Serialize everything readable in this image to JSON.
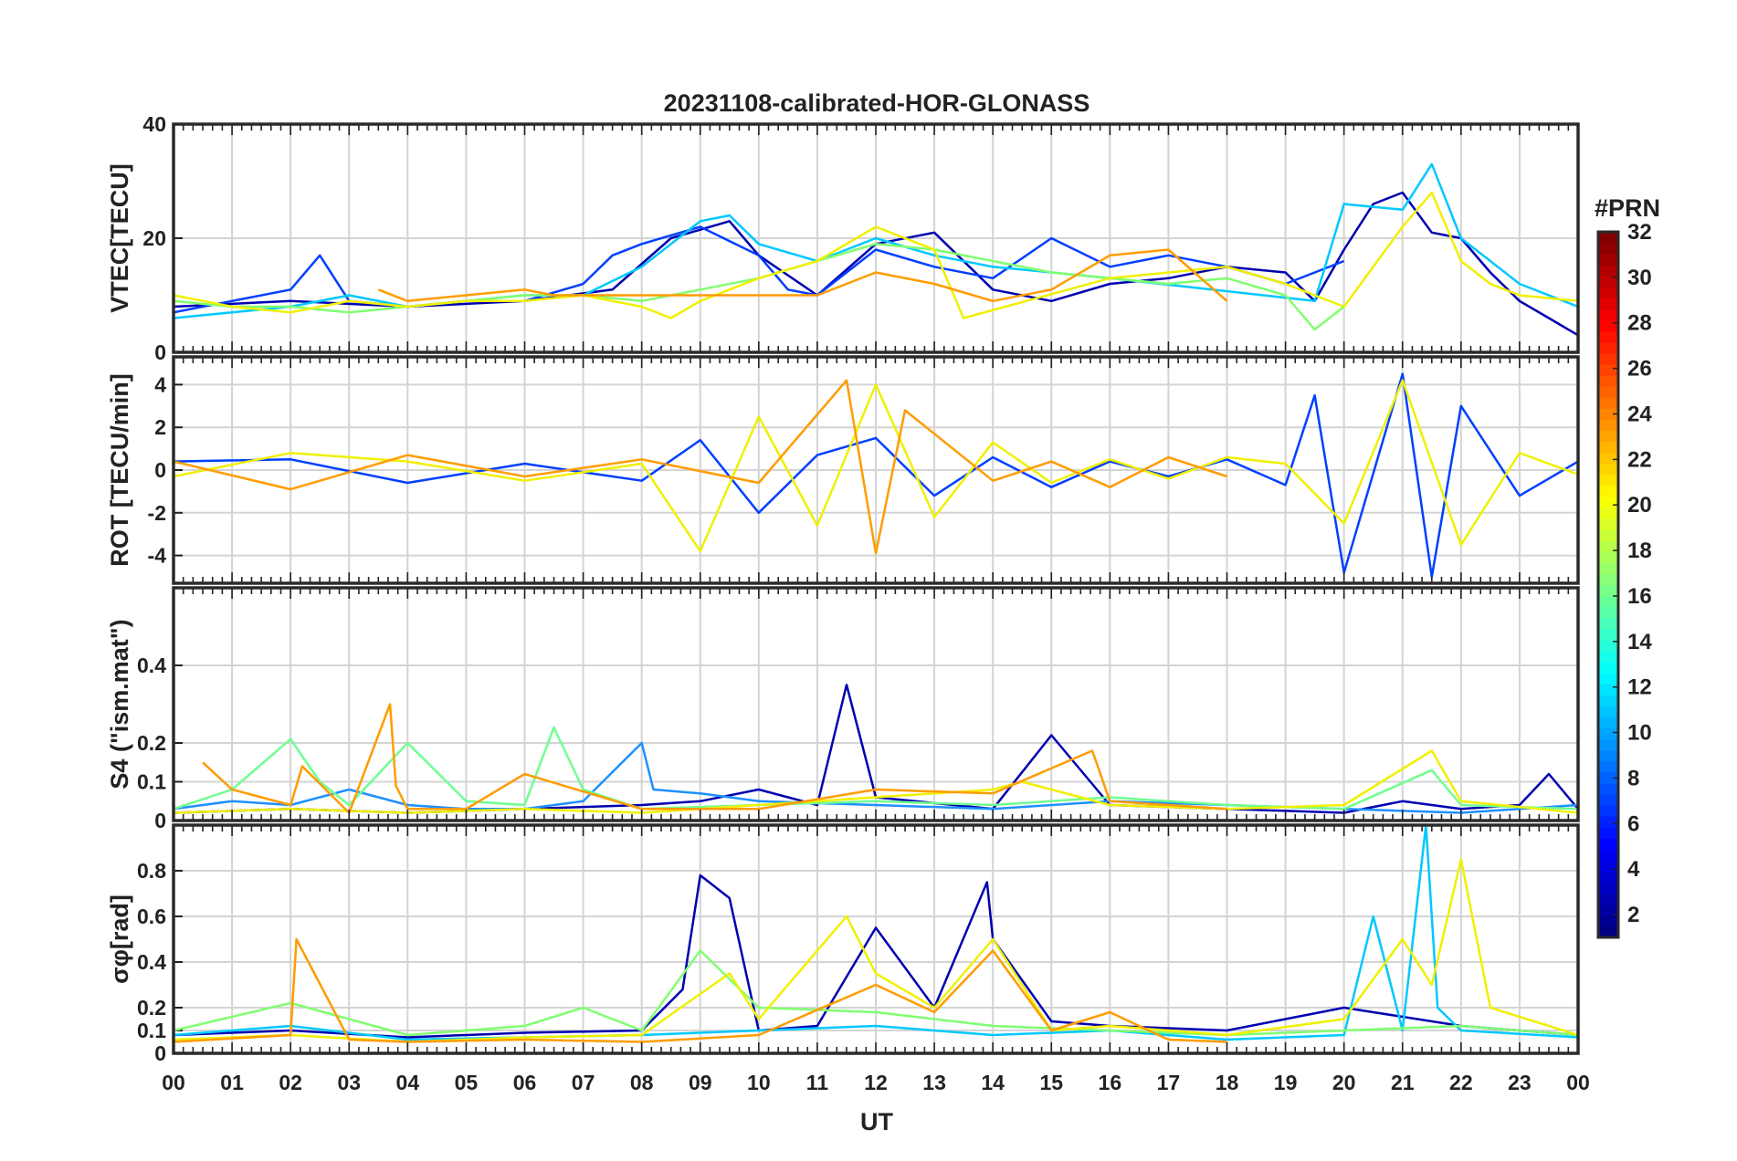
{
  "title": "20231108-calibrated-HOR-GLONASS",
  "x_axis": {
    "label": "UT",
    "range": [
      0,
      24
    ],
    "tick_labels": [
      "00",
      "01",
      "02",
      "03",
      "04",
      "05",
      "06",
      "07",
      "08",
      "09",
      "10",
      "11",
      "12",
      "13",
      "14",
      "15",
      "16",
      "17",
      "18",
      "19",
      "20",
      "21",
      "22",
      "23",
      "00"
    ]
  },
  "colorbar": {
    "title": "#PRN",
    "range": [
      1,
      32
    ],
    "tick_labels": [
      "2",
      "4",
      "6",
      "8",
      "10",
      "12",
      "14",
      "16",
      "18",
      "20",
      "22",
      "24",
      "26",
      "28",
      "30",
      "32"
    ],
    "colormap": "jet"
  },
  "chart_data": [
    {
      "type": "line",
      "ylabel": "VTEC[TECU]",
      "ylim": [
        0,
        40
      ],
      "yticks": [
        "0",
        "20",
        "40"
      ],
      "grid": true,
      "series": [
        {
          "prn": 2,
          "color": "#0000b0",
          "x": [
            0,
            2,
            4,
            6,
            7.5,
            8.5,
            9.5,
            10,
            11,
            12,
            13,
            14,
            15,
            16,
            17,
            18,
            19,
            19.5,
            20,
            20.5,
            21,
            21.5,
            22,
            22.5,
            23,
            23.5,
            24
          ],
          "y": [
            8,
            9,
            8,
            9,
            11,
            20,
            23,
            17,
            10,
            19,
            21,
            11,
            9,
            12,
            13,
            15,
            14,
            9,
            18,
            26,
            28,
            21,
            20,
            14,
            9,
            6,
            3
          ]
        },
        {
          "prn": 5,
          "color": "#0040ff",
          "x": [
            0,
            1,
            2,
            2.5,
            3,
            4,
            5,
            6,
            7,
            7.5,
            8,
            9,
            10,
            10.5,
            11,
            12,
            13,
            14,
            15,
            16,
            17,
            18,
            19,
            20
          ],
          "y": [
            7,
            9,
            11,
            17,
            9,
            8,
            9,
            9,
            12,
            17,
            19,
            22,
            17,
            11,
            10,
            18,
            15,
            13,
            20,
            15,
            17,
            15,
            12,
            16
          ]
        },
        {
          "prn": 12,
          "color": "#00c8ff",
          "x": [
            0,
            1,
            2,
            3,
            4,
            5,
            6,
            7,
            8,
            9,
            9.5,
            10,
            11,
            12,
            13,
            14,
            15,
            16,
            19.5,
            20,
            21,
            21.5,
            22,
            23,
            24
          ],
          "y": [
            6,
            7,
            8,
            10,
            8,
            9,
            10,
            10,
            15,
            23,
            24,
            19,
            16,
            20,
            17,
            15,
            14,
            13,
            9,
            26,
            25,
            33,
            20,
            12,
            8
          ]
        },
        {
          "prn": 16,
          "color": "#80ff70",
          "x": [
            0,
            1,
            2,
            3,
            4,
            5,
            6,
            7,
            8,
            9,
            10,
            11,
            12,
            13,
            14,
            15,
            16,
            17,
            18,
            19,
            19.5,
            20
          ],
          "y": [
            9,
            8,
            8,
            7,
            8,
            9,
            10,
            10,
            9,
            11,
            13,
            16,
            19,
            18,
            16,
            14,
            13,
            12,
            13,
            10,
            4,
            8
          ]
        },
        {
          "prn": 20,
          "color": "#f0f000",
          "x": [
            0,
            1,
            2,
            3,
            4,
            5,
            6,
            7,
            8,
            8.5,
            9,
            10,
            11,
            12,
            13,
            13.5,
            16,
            17,
            18,
            19,
            20,
            21,
            21.5,
            22,
            22.5,
            23,
            24
          ],
          "y": [
            10,
            8,
            7,
            9,
            8,
            9,
            9,
            10,
            8,
            6,
            9,
            13,
            16,
            22,
            18,
            6,
            13,
            14,
            15,
            12,
            8,
            22,
            28,
            16,
            12,
            10,
            9
          ]
        },
        {
          "prn": 22,
          "color": "#ff9c00",
          "x": [
            3.5,
            4,
            5,
            6,
            6.5,
            11,
            12,
            13,
            14,
            15,
            16,
            17,
            18
          ],
          "y": [
            11,
            9,
            10,
            11,
            10,
            10,
            14,
            12,
            9,
            11,
            17,
            18,
            9
          ]
        }
      ]
    },
    {
      "type": "line",
      "ylabel": "ROT [TECU/min]",
      "ylim": [
        -5.3,
        5.3
      ],
      "yticks": [
        "-4",
        "-2",
        "0",
        "2",
        "4"
      ],
      "grid": true,
      "series": [
        {
          "prn": 5,
          "color": "#0040ff",
          "x": [
            0,
            2,
            4,
            6,
            8,
            9,
            10,
            11,
            12,
            13,
            14,
            15,
            16,
            17,
            18,
            19,
            19.5,
            20,
            21,
            21.5,
            22,
            23,
            24
          ],
          "y": [
            0.4,
            0.5,
            -0.6,
            0.3,
            -0.5,
            1.4,
            -2,
            0.7,
            1.5,
            -1.2,
            0.6,
            -0.8,
            0.4,
            -0.3,
            0.5,
            -0.7,
            3.5,
            -4.8,
            4.5,
            -5,
            3,
            -1.2,
            0.4
          ]
        },
        {
          "prn": 20,
          "color": "#f0f000",
          "x": [
            0,
            2,
            4,
            6,
            8,
            9,
            10,
            11,
            12,
            13,
            14,
            15,
            16,
            17,
            18,
            19,
            20,
            21,
            22,
            23,
            24
          ],
          "y": [
            -0.3,
            0.8,
            0.4,
            -0.5,
            0.3,
            -3.8,
            2.5,
            -2.6,
            4,
            -2.2,
            1.3,
            -0.6,
            0.5,
            -0.4,
            0.6,
            0.3,
            -2.5,
            4.2,
            -3.5,
            0.8,
            -0.2
          ]
        },
        {
          "prn": 22,
          "color": "#ff9c00",
          "x": [
            0,
            2,
            4,
            6,
            8,
            10,
            11.5,
            12,
            12.5,
            14,
            15,
            16,
            17,
            18
          ],
          "y": [
            0.4,
            -0.9,
            0.7,
            -0.3,
            0.5,
            -0.6,
            4.2,
            -3.9,
            2.8,
            -0.5,
            0.4,
            -0.8,
            0.6,
            -0.3
          ]
        }
      ]
    },
    {
      "type": "line",
      "ylabel": "S4 (\"ism.mat\")",
      "ylim": [
        0,
        0.6
      ],
      "yticks": [
        "0",
        "0.1",
        "0.2",
        "0.4"
      ],
      "grid": true,
      "series": [
        {
          "prn": 2,
          "color": "#0000b0",
          "x": [
            0,
            2,
            4,
            6,
            8,
            9,
            10,
            11,
            11.5,
            12,
            14,
            15,
            16,
            18,
            20,
            21,
            22,
            23,
            23.5,
            24
          ],
          "y": [
            0.02,
            0.03,
            0.02,
            0.03,
            0.04,
            0.05,
            0.08,
            0.04,
            0.35,
            0.06,
            0.03,
            0.22,
            0.04,
            0.03,
            0.02,
            0.05,
            0.03,
            0.04,
            0.12,
            0.03
          ]
        },
        {
          "prn": 10,
          "color": "#1e90ff",
          "x": [
            0,
            1,
            2,
            3,
            4,
            5,
            6,
            7,
            8,
            8.2,
            9,
            10,
            12,
            14,
            16,
            18,
            20,
            22,
            24
          ],
          "y": [
            0.03,
            0.05,
            0.04,
            0.08,
            0.04,
            0.03,
            0.03,
            0.05,
            0.2,
            0.08,
            0.07,
            0.05,
            0.04,
            0.03,
            0.05,
            0.04,
            0.03,
            0.02,
            0.04
          ]
        },
        {
          "prn": 16,
          "color": "#70ff90",
          "x": [
            0,
            1,
            2,
            2.5,
            3,
            4,
            5,
            6,
            6.5,
            7,
            8,
            10,
            12,
            14,
            16,
            18,
            20,
            21.5,
            22,
            24
          ],
          "y": [
            0.03,
            0.08,
            0.21,
            0.1,
            0.04,
            0.2,
            0.05,
            0.04,
            0.24,
            0.08,
            0.03,
            0.04,
            0.05,
            0.04,
            0.06,
            0.04,
            0.03,
            0.13,
            0.04,
            0.03
          ]
        },
        {
          "prn": 20,
          "color": "#f0f000",
          "x": [
            0,
            2,
            4,
            6,
            8,
            10,
            12,
            14,
            14.5,
            16,
            18,
            20,
            21.5,
            22,
            24
          ],
          "y": [
            0.02,
            0.03,
            0.02,
            0.03,
            0.02,
            0.04,
            0.06,
            0.08,
            0.1,
            0.04,
            0.03,
            0.04,
            0.18,
            0.05,
            0.02
          ]
        },
        {
          "prn": 22,
          "color": "#ff9c00",
          "x": [
            0.5,
            1,
            2,
            2.2,
            3,
            3.7,
            3.8,
            4,
            5,
            6,
            8,
            10,
            12,
            14,
            15.7,
            16,
            17,
            18
          ],
          "y": [
            0.15,
            0.08,
            0.04,
            0.14,
            0.02,
            0.3,
            0.09,
            0.03,
            0.03,
            0.12,
            0.03,
            0.03,
            0.08,
            0.07,
            0.18,
            0.05,
            0.04,
            0.03
          ]
        }
      ]
    },
    {
      "type": "line",
      "ylabel": "σφ[rad]",
      "ylim": [
        0,
        1.0
      ],
      "yticks": [
        "0",
        "0.1",
        "0.2",
        "0.4",
        "0.6",
        "0.8"
      ],
      "grid": true,
      "series": [
        {
          "prn": 2,
          "color": "#0000b0",
          "x": [
            0,
            2,
            4,
            6,
            8,
            8.7,
            9,
            9.5,
            10,
            11,
            12,
            13,
            13.9,
            14,
            15,
            16,
            18,
            20,
            22,
            24
          ],
          "y": [
            0.08,
            0.1,
            0.07,
            0.09,
            0.1,
            0.28,
            0.78,
            0.68,
            0.1,
            0.12,
            0.55,
            0.2,
            0.75,
            0.5,
            0.14,
            0.12,
            0.1,
            0.2,
            0.12,
            0.08
          ]
        },
        {
          "prn": 12,
          "color": "#00c8ff",
          "x": [
            0,
            2,
            4,
            6,
            8,
            10,
            12,
            14,
            16,
            18,
            20,
            20.5,
            21,
            21.4,
            21.6,
            22,
            24
          ],
          "y": [
            0.08,
            0.12,
            0.06,
            0.07,
            0.08,
            0.1,
            0.12,
            0.08,
            0.1,
            0.06,
            0.08,
            0.6,
            0.1,
            1.0,
            0.2,
            0.1,
            0.07
          ]
        },
        {
          "prn": 16,
          "color": "#80ff70",
          "x": [
            0,
            2,
            4,
            6,
            7,
            8,
            9,
            10,
            12,
            14,
            16,
            18,
            20,
            22,
            24
          ],
          "y": [
            0.1,
            0.22,
            0.08,
            0.12,
            0.2,
            0.1,
            0.45,
            0.2,
            0.18,
            0.12,
            0.1,
            0.08,
            0.1,
            0.12,
            0.08
          ]
        },
        {
          "prn": 20,
          "color": "#f0f000",
          "x": [
            0,
            2,
            4,
            6,
            8,
            9.5,
            10,
            11.5,
            12,
            13,
            14,
            15,
            16,
            18,
            20,
            21,
            21.5,
            22,
            22.5,
            24
          ],
          "y": [
            0.06,
            0.08,
            0.05,
            0.07,
            0.08,
            0.35,
            0.15,
            0.6,
            0.35,
            0.2,
            0.5,
            0.1,
            0.12,
            0.08,
            0.15,
            0.5,
            0.3,
            0.85,
            0.2,
            0.08
          ]
        },
        {
          "prn": 22,
          "color": "#ff9c00",
          "x": [
            0,
            2,
            2.1,
            3,
            4,
            6,
            8,
            10,
            12,
            13,
            14,
            15,
            16,
            17,
            18
          ],
          "y": [
            0.05,
            0.08,
            0.5,
            0.06,
            0.05,
            0.06,
            0.05,
            0.08,
            0.3,
            0.18,
            0.45,
            0.1,
            0.18,
            0.06,
            0.05
          ]
        }
      ]
    }
  ]
}
